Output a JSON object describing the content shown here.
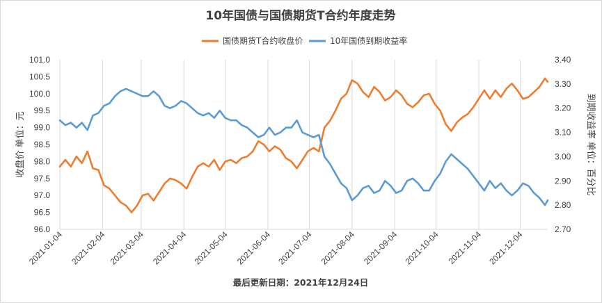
{
  "chart_data": {
    "type": "line",
    "title": "10年国债与国债期货T合约年度走势",
    "legend_position": "top",
    "grid": "vertical",
    "footer": "最后更新日期：2021年12月24日",
    "x_ticks": [
      "2021-01-04",
      "2021-02-04",
      "2021-03-04",
      "2021-04-04",
      "2021-05-04",
      "2021-06-04",
      "2021-07-04",
      "2021-08-04",
      "2021-09-04",
      "2021-10-04",
      "2021-11-04",
      "2021-12-04"
    ],
    "x_range": [
      "2021-01-04",
      "2021-12-24"
    ],
    "y_left": {
      "label": "收盘价 单位：元",
      "min": 96.0,
      "max": 101.0,
      "ticks": [
        "96.0",
        "96.5",
        "97.0",
        "97.5",
        "98.0",
        "98.5",
        "99.0",
        "99.5",
        "100.0",
        "100.5",
        "101.0"
      ]
    },
    "y_right": {
      "label": "到期收益率 单位：百分比",
      "min": 2.7,
      "max": 3.4,
      "ticks": [
        "2.70",
        "2.80",
        "2.90",
        "3.00",
        "3.10",
        "3.20",
        "3.30",
        "3.40"
      ]
    },
    "series": [
      {
        "name": "国债期货T合约收盘价",
        "color": "#ed7d31",
        "axis": "left",
        "points": [
          [
            "2021-01-04",
            97.85
          ],
          [
            "2021-01-08",
            98.05
          ],
          [
            "2021-01-12",
            97.85
          ],
          [
            "2021-01-16",
            98.15
          ],
          [
            "2021-01-20",
            97.95
          ],
          [
            "2021-01-24",
            98.3
          ],
          [
            "2021-01-28",
            97.8
          ],
          [
            "2021-02-01",
            97.75
          ],
          [
            "2021-02-05",
            97.3
          ],
          [
            "2021-02-09",
            97.2
          ],
          [
            "2021-02-13",
            97.0
          ],
          [
            "2021-02-17",
            96.8
          ],
          [
            "2021-02-21",
            96.7
          ],
          [
            "2021-02-25",
            96.5
          ],
          [
            "2021-03-01",
            96.7
          ],
          [
            "2021-03-05",
            97.0
          ],
          [
            "2021-03-09",
            97.05
          ],
          [
            "2021-03-13",
            96.85
          ],
          [
            "2021-03-17",
            97.1
          ],
          [
            "2021-03-21",
            97.35
          ],
          [
            "2021-03-25",
            97.5
          ],
          [
            "2021-03-29",
            97.45
          ],
          [
            "2021-04-02",
            97.35
          ],
          [
            "2021-04-06",
            97.2
          ],
          [
            "2021-04-10",
            97.55
          ],
          [
            "2021-04-14",
            97.85
          ],
          [
            "2021-04-18",
            97.95
          ],
          [
            "2021-04-22",
            97.85
          ],
          [
            "2021-04-26",
            98.05
          ],
          [
            "2021-04-30",
            97.75
          ],
          [
            "2021-05-04",
            98.0
          ],
          [
            "2021-05-08",
            98.05
          ],
          [
            "2021-05-12",
            97.95
          ],
          [
            "2021-05-16",
            98.1
          ],
          [
            "2021-05-20",
            98.15
          ],
          [
            "2021-05-24",
            98.3
          ],
          [
            "2021-05-28",
            98.6
          ],
          [
            "2021-06-01",
            98.5
          ],
          [
            "2021-06-05",
            98.3
          ],
          [
            "2021-06-09",
            98.45
          ],
          [
            "2021-06-13",
            98.35
          ],
          [
            "2021-06-17",
            98.1
          ],
          [
            "2021-06-21",
            98.0
          ],
          [
            "2021-06-25",
            97.8
          ],
          [
            "2021-06-29",
            98.05
          ],
          [
            "2021-07-03",
            98.3
          ],
          [
            "2021-07-07",
            98.4
          ],
          [
            "2021-07-11",
            98.3
          ],
          [
            "2021-07-15",
            99.0
          ],
          [
            "2021-07-19",
            99.2
          ],
          [
            "2021-07-23",
            99.5
          ],
          [
            "2021-07-27",
            99.85
          ],
          [
            "2021-07-31",
            100.0
          ],
          [
            "2021-08-04",
            100.4
          ],
          [
            "2021-08-08",
            100.3
          ],
          [
            "2021-08-12",
            100.05
          ],
          [
            "2021-08-16",
            99.9
          ],
          [
            "2021-08-20",
            100.2
          ],
          [
            "2021-08-24",
            100.05
          ],
          [
            "2021-08-28",
            99.8
          ],
          [
            "2021-09-01",
            99.9
          ],
          [
            "2021-09-05",
            100.1
          ],
          [
            "2021-09-09",
            99.95
          ],
          [
            "2021-09-13",
            99.7
          ],
          [
            "2021-09-17",
            99.6
          ],
          [
            "2021-09-21",
            99.75
          ],
          [
            "2021-09-25",
            99.95
          ],
          [
            "2021-09-29",
            100.0
          ],
          [
            "2021-10-03",
            99.7
          ],
          [
            "2021-10-07",
            99.5
          ],
          [
            "2021-10-11",
            99.1
          ],
          [
            "2021-10-15",
            98.9
          ],
          [
            "2021-10-19",
            99.15
          ],
          [
            "2021-10-23",
            99.3
          ],
          [
            "2021-10-27",
            99.4
          ],
          [
            "2021-10-31",
            99.6
          ],
          [
            "2021-11-04",
            99.85
          ],
          [
            "2021-11-08",
            100.1
          ],
          [
            "2021-11-12",
            99.85
          ],
          [
            "2021-11-16",
            100.1
          ],
          [
            "2021-11-20",
            99.9
          ],
          [
            "2021-11-24",
            100.15
          ],
          [
            "2021-11-28",
            100.3
          ],
          [
            "2021-12-02",
            100.1
          ],
          [
            "2021-12-06",
            99.85
          ],
          [
            "2021-12-10",
            99.9
          ],
          [
            "2021-12-14",
            100.05
          ],
          [
            "2021-12-18",
            100.2
          ],
          [
            "2021-12-22",
            100.45
          ],
          [
            "2021-12-24",
            100.35
          ]
        ]
      },
      {
        "name": "10年国债到期收益率",
        "color": "#5b9bd5",
        "axis": "right",
        "points": [
          [
            "2021-01-04",
            3.15
          ],
          [
            "2021-01-08",
            3.13
          ],
          [
            "2021-01-12",
            3.14
          ],
          [
            "2021-01-16",
            3.12
          ],
          [
            "2021-01-20",
            3.14
          ],
          [
            "2021-01-24",
            3.11
          ],
          [
            "2021-01-28",
            3.17
          ],
          [
            "2021-02-01",
            3.18
          ],
          [
            "2021-02-05",
            3.21
          ],
          [
            "2021-02-09",
            3.22
          ],
          [
            "2021-02-13",
            3.25
          ],
          [
            "2021-02-17",
            3.27
          ],
          [
            "2021-02-21",
            3.28
          ],
          [
            "2021-02-25",
            3.27
          ],
          [
            "2021-03-01",
            3.26
          ],
          [
            "2021-03-05",
            3.25
          ],
          [
            "2021-03-09",
            3.25
          ],
          [
            "2021-03-13",
            3.27
          ],
          [
            "2021-03-17",
            3.25
          ],
          [
            "2021-03-21",
            3.21
          ],
          [
            "2021-03-25",
            3.2
          ],
          [
            "2021-03-29",
            3.21
          ],
          [
            "2021-04-02",
            3.23
          ],
          [
            "2021-04-06",
            3.22
          ],
          [
            "2021-04-10",
            3.2
          ],
          [
            "2021-04-14",
            3.18
          ],
          [
            "2021-04-18",
            3.17
          ],
          [
            "2021-04-22",
            3.18
          ],
          [
            "2021-04-26",
            3.16
          ],
          [
            "2021-04-30",
            3.19
          ],
          [
            "2021-05-04",
            3.16
          ],
          [
            "2021-05-08",
            3.15
          ],
          [
            "2021-05-12",
            3.15
          ],
          [
            "2021-05-16",
            3.13
          ],
          [
            "2021-05-20",
            3.12
          ],
          [
            "2021-05-24",
            3.1
          ],
          [
            "2021-05-28",
            3.08
          ],
          [
            "2021-06-01",
            3.09
          ],
          [
            "2021-06-05",
            3.12
          ],
          [
            "2021-06-09",
            3.09
          ],
          [
            "2021-06-13",
            3.1
          ],
          [
            "2021-06-17",
            3.12
          ],
          [
            "2021-06-21",
            3.12
          ],
          [
            "2021-06-25",
            3.15
          ],
          [
            "2021-06-29",
            3.1
          ],
          [
            "2021-07-03",
            3.09
          ],
          [
            "2021-07-07",
            3.08
          ],
          [
            "2021-07-11",
            3.09
          ],
          [
            "2021-07-15",
            3.0
          ],
          [
            "2021-07-19",
            2.97
          ],
          [
            "2021-07-23",
            2.93
          ],
          [
            "2021-07-27",
            2.89
          ],
          [
            "2021-07-31",
            2.87
          ],
          [
            "2021-08-04",
            2.82
          ],
          [
            "2021-08-08",
            2.84
          ],
          [
            "2021-08-12",
            2.87
          ],
          [
            "2021-08-16",
            2.88
          ],
          [
            "2021-08-20",
            2.85
          ],
          [
            "2021-08-24",
            2.86
          ],
          [
            "2021-08-28",
            2.9
          ],
          [
            "2021-09-01",
            2.88
          ],
          [
            "2021-09-05",
            2.85
          ],
          [
            "2021-09-09",
            2.86
          ],
          [
            "2021-09-13",
            2.9
          ],
          [
            "2021-09-17",
            2.91
          ],
          [
            "2021-09-21",
            2.89
          ],
          [
            "2021-09-25",
            2.86
          ],
          [
            "2021-09-29",
            2.86
          ],
          [
            "2021-10-03",
            2.9
          ],
          [
            "2021-10-07",
            2.93
          ],
          [
            "2021-10-11",
            2.98
          ],
          [
            "2021-10-15",
            3.01
          ],
          [
            "2021-10-19",
            2.99
          ],
          [
            "2021-10-23",
            2.97
          ],
          [
            "2021-10-27",
            2.95
          ],
          [
            "2021-10-31",
            2.92
          ],
          [
            "2021-11-04",
            2.89
          ],
          [
            "2021-11-08",
            2.86
          ],
          [
            "2021-11-12",
            2.9
          ],
          [
            "2021-11-16",
            2.87
          ],
          [
            "2021-11-20",
            2.89
          ],
          [
            "2021-11-24",
            2.86
          ],
          [
            "2021-11-28",
            2.84
          ],
          [
            "2021-12-02",
            2.86
          ],
          [
            "2021-12-06",
            2.89
          ],
          [
            "2021-12-10",
            2.88
          ],
          [
            "2021-12-14",
            2.85
          ],
          [
            "2021-12-18",
            2.83
          ],
          [
            "2021-12-22",
            2.8
          ],
          [
            "2021-12-24",
            2.82
          ]
        ]
      }
    ]
  }
}
